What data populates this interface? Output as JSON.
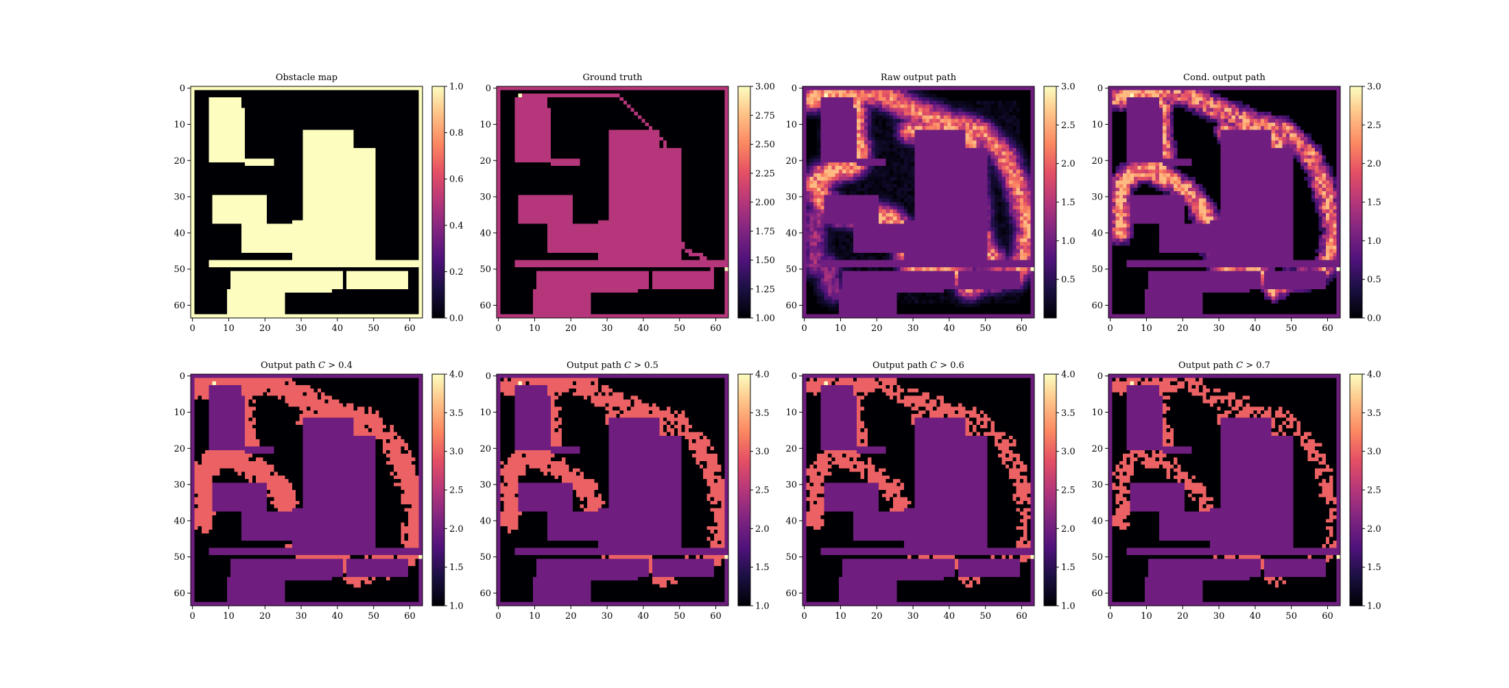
{
  "chart_data": [
    {
      "type": "heatmap",
      "title": "Obstacle map",
      "colormap": "magma",
      "grid_size": 64,
      "xlim": [
        0,
        63
      ],
      "ylim": [
        63,
        0
      ],
      "x_ticks": [
        "0",
        "10",
        "20",
        "30",
        "40",
        "50",
        "60"
      ],
      "y_ticks": [
        "0",
        "10",
        "20",
        "30",
        "40",
        "50",
        "60"
      ],
      "colorbar_range": [
        0.0,
        1.0
      ],
      "colorbar_ticks": [
        "0.0",
        "0.2",
        "0.4",
        "0.6",
        "0.8",
        "1.0"
      ],
      "colorbar_tick_values": [
        0.0,
        0.2,
        0.4,
        0.6,
        0.8,
        1.0
      ],
      "layers": {
        "background": 0.0,
        "border": 1.0,
        "obstacle": 1.0
      }
    },
    {
      "type": "heatmap",
      "title": "Ground truth",
      "colormap": "magma",
      "grid_size": 64,
      "xlim": [
        0,
        63
      ],
      "ylim": [
        63,
        0
      ],
      "x_ticks": [
        "0",
        "10",
        "20",
        "30",
        "40",
        "50",
        "60"
      ],
      "y_ticks": [
        "0",
        "10",
        "20",
        "30",
        "40",
        "50",
        "60"
      ],
      "colorbar_range": [
        1.0,
        3.0
      ],
      "colorbar_ticks": [
        "1.00",
        "1.25",
        "1.50",
        "1.75",
        "2.00",
        "2.25",
        "2.50",
        "2.75",
        "3.00"
      ],
      "colorbar_tick_values": [
        1.0,
        1.25,
        1.5,
        1.75,
        2.0,
        2.25,
        2.5,
        2.75,
        3.0
      ],
      "layers": {
        "background": 1.0,
        "border": 2.0,
        "obstacle": 2.0,
        "path": 2.0,
        "endpoints": 3.0
      }
    },
    {
      "type": "heatmap",
      "title": "Raw output path",
      "colormap": "magma",
      "grid_size": 64,
      "xlim": [
        0,
        63
      ],
      "ylim": [
        63,
        0
      ],
      "x_ticks": [
        "0",
        "10",
        "20",
        "30",
        "40",
        "50",
        "60"
      ],
      "y_ticks": [
        "0",
        "10",
        "20",
        "30",
        "40",
        "50",
        "60"
      ],
      "colorbar_range": [
        0.0,
        3.0
      ],
      "colorbar_ticks": [
        "0.5",
        "1.0",
        "1.5",
        "2.0",
        "2.5",
        "3.0"
      ],
      "colorbar_tick_values": [
        0.5,
        1.0,
        1.5,
        2.0,
        2.5,
        3.0
      ],
      "layers": {
        "background": 0.0,
        "border": 1.0,
        "obstacle": 1.0,
        "path_confidence_peak": 2.6,
        "endpoints": 3.0
      }
    },
    {
      "type": "heatmap",
      "title": "Cond. output path",
      "colormap": "magma",
      "grid_size": 64,
      "xlim": [
        0,
        63
      ],
      "ylim": [
        63,
        0
      ],
      "x_ticks": [
        "0",
        "10",
        "20",
        "30",
        "40",
        "50",
        "60"
      ],
      "y_ticks": [
        "0",
        "10",
        "20",
        "30",
        "40",
        "50",
        "60"
      ],
      "colorbar_range": [
        0.0,
        3.0
      ],
      "colorbar_ticks": [
        "0.0",
        "0.5",
        "1.0",
        "1.5",
        "2.0",
        "2.5",
        "3.0"
      ],
      "colorbar_tick_values": [
        0.0,
        0.5,
        1.0,
        1.5,
        2.0,
        2.5,
        3.0
      ],
      "layers": {
        "background": 0.0,
        "border": 1.0,
        "obstacle": 1.0,
        "path_confidence_peak": 2.6,
        "endpoints": 3.0
      }
    },
    {
      "type": "heatmap",
      "title_prefix": "Output path ",
      "title_var": "C",
      "title_suffix": " > 0.4",
      "threshold": 0.4,
      "colormap": "magma",
      "grid_size": 64,
      "xlim": [
        0,
        63
      ],
      "ylim": [
        63,
        0
      ],
      "x_ticks": [
        "0",
        "10",
        "20",
        "30",
        "40",
        "50",
        "60"
      ],
      "y_ticks": [
        "0",
        "10",
        "20",
        "30",
        "40",
        "50",
        "60"
      ],
      "colorbar_range": [
        1.0,
        4.0
      ],
      "colorbar_ticks": [
        "1.0",
        "1.5",
        "2.0",
        "2.5",
        "3.0",
        "3.5",
        "4.0"
      ],
      "colorbar_tick_values": [
        1.0,
        1.5,
        2.0,
        2.5,
        3.0,
        3.5,
        4.0
      ],
      "layers": {
        "background": 1.0,
        "border": 2.0,
        "obstacle": 2.0,
        "path": 3.0,
        "endpoints": 4.0
      }
    },
    {
      "type": "heatmap",
      "title_prefix": "Output path ",
      "title_var": "C",
      "title_suffix": " > 0.5",
      "threshold": 0.5,
      "colormap": "magma",
      "grid_size": 64,
      "xlim": [
        0,
        63
      ],
      "ylim": [
        63,
        0
      ],
      "x_ticks": [
        "0",
        "10",
        "20",
        "30",
        "40",
        "50",
        "60"
      ],
      "y_ticks": [
        "0",
        "10",
        "20",
        "30",
        "40",
        "50",
        "60"
      ],
      "colorbar_range": [
        1.0,
        4.0
      ],
      "colorbar_ticks": [
        "1.0",
        "1.5",
        "2.0",
        "2.5",
        "3.0",
        "3.5",
        "4.0"
      ],
      "colorbar_tick_values": [
        1.0,
        1.5,
        2.0,
        2.5,
        3.0,
        3.5,
        4.0
      ],
      "layers": {
        "background": 1.0,
        "border": 2.0,
        "obstacle": 2.0,
        "path": 3.0,
        "endpoints": 4.0
      }
    },
    {
      "type": "heatmap",
      "title_prefix": "Output path ",
      "title_var": "C",
      "title_suffix": " > 0.6",
      "threshold": 0.6,
      "colormap": "magma",
      "grid_size": 64,
      "xlim": [
        0,
        63
      ],
      "ylim": [
        63,
        0
      ],
      "x_ticks": [
        "0",
        "10",
        "20",
        "30",
        "40",
        "50",
        "60"
      ],
      "y_ticks": [
        "0",
        "10",
        "20",
        "30",
        "40",
        "50",
        "60"
      ],
      "colorbar_range": [
        1.0,
        4.0
      ],
      "colorbar_ticks": [
        "1.0",
        "1.5",
        "2.0",
        "2.5",
        "3.0",
        "3.5",
        "4.0"
      ],
      "colorbar_tick_values": [
        1.0,
        1.5,
        2.0,
        2.5,
        3.0,
        3.5,
        4.0
      ],
      "layers": {
        "background": 1.0,
        "border": 2.0,
        "obstacle": 2.0,
        "path": 3.0,
        "endpoints": 4.0
      }
    },
    {
      "type": "heatmap",
      "title_prefix": "Output path ",
      "title_var": "C",
      "title_suffix": " > 0.7",
      "threshold": 0.7,
      "colormap": "magma",
      "grid_size": 64,
      "xlim": [
        0,
        63
      ],
      "ylim": [
        63,
        0
      ],
      "x_ticks": [
        "0",
        "10",
        "20",
        "30",
        "40",
        "50",
        "60"
      ],
      "y_ticks": [
        "0",
        "10",
        "20",
        "30",
        "40",
        "50",
        "60"
      ],
      "colorbar_range": [
        1.0,
        4.0
      ],
      "colorbar_ticks": [
        "1.0",
        "1.5",
        "2.0",
        "2.5",
        "3.0",
        "3.5",
        "4.0"
      ],
      "colorbar_tick_values": [
        1.0,
        1.5,
        2.0,
        2.5,
        3.0,
        3.5,
        4.0
      ],
      "layers": {
        "background": 1.0,
        "border": 2.0,
        "obstacle": 2.0,
        "path": 3.0,
        "endpoints": 4.0
      }
    }
  ],
  "obstacles": [
    [
      5,
      3,
      14,
      6
    ],
    [
      5,
      6,
      15,
      21
    ],
    [
      15,
      20,
      23,
      22
    ],
    [
      31,
      12,
      45,
      17
    ],
    [
      31,
      17,
      51,
      49
    ],
    [
      6,
      30,
      21,
      38
    ],
    [
      14,
      38,
      28,
      46
    ],
    [
      28,
      37,
      31,
      49
    ],
    [
      5,
      48,
      63,
      50
    ],
    [
      11,
      51,
      42,
      56
    ],
    [
      10,
      56,
      26,
      63
    ],
    [
      26,
      56,
      39,
      57
    ],
    [
      43,
      51,
      60,
      56
    ]
  ],
  "gt_path": {
    "start": [
      6,
      2
    ],
    "end": [
      63,
      50
    ],
    "points": [
      [
        6,
        2
      ],
      [
        33,
        2
      ],
      [
        40,
        9
      ],
      [
        46,
        15
      ],
      [
        47,
        21
      ],
      [
        48,
        40
      ],
      [
        52,
        45
      ],
      [
        57,
        47
      ],
      [
        59,
        50
      ]
    ]
  },
  "raw_path": {
    "main": [
      [
        2,
        3
      ],
      [
        6,
        1
      ],
      [
        13,
        2
      ],
      [
        14,
        6
      ],
      [
        14,
        12
      ],
      [
        15,
        20
      ],
      [
        12,
        22
      ],
      [
        7,
        23
      ],
      [
        3,
        26
      ]
    ],
    "outer": [
      [
        6,
        1
      ],
      [
        22,
        2
      ],
      [
        30,
        6
      ],
      [
        38,
        9
      ],
      [
        49,
        12
      ],
      [
        55,
        18
      ],
      [
        59,
        27
      ],
      [
        62,
        39
      ],
      [
        60,
        49
      ],
      [
        58,
        52
      ],
      [
        49,
        53
      ],
      [
        45,
        55
      ]
    ],
    "inner": [
      [
        3,
        26
      ],
      [
        5,
        31
      ],
      [
        10,
        35
      ],
      [
        20,
        35
      ],
      [
        25,
        37
      ],
      [
        28,
        40
      ],
      [
        28,
        45
      ],
      [
        30,
        49
      ],
      [
        33,
        51
      ],
      [
        42,
        51
      ],
      [
        44,
        53
      ],
      [
        47,
        53
      ]
    ],
    "mid": [
      [
        29,
        12
      ],
      [
        40,
        12
      ],
      [
        46,
        15
      ],
      [
        47,
        22
      ],
      [
        48,
        40
      ],
      [
        50,
        45
      ],
      [
        53,
        49
      ]
    ],
    "lower_left": [
      [
        3,
        35
      ],
      [
        3,
        49
      ],
      [
        6,
        49
      ],
      [
        8,
        56
      ]
    ]
  },
  "cond_path": {
    "main": [
      [
        2,
        3
      ],
      [
        6,
        1
      ],
      [
        13,
        2
      ],
      [
        14,
        6
      ],
      [
        14,
        12
      ],
      [
        15,
        20
      ],
      [
        12,
        22
      ],
      [
        7,
        23
      ],
      [
        3,
        26
      ],
      [
        3,
        40
      ]
    ],
    "outer": [
      [
        6,
        1
      ],
      [
        22,
        2
      ],
      [
        30,
        6
      ],
      [
        38,
        9
      ],
      [
        49,
        12
      ],
      [
        55,
        18
      ],
      [
        59,
        27
      ],
      [
        62,
        39
      ],
      [
        60,
        49
      ],
      [
        57,
        52
      ],
      [
        49,
        53
      ],
      [
        45,
        56
      ]
    ],
    "inner": [
      [
        9,
        22
      ],
      [
        18,
        26
      ],
      [
        24,
        31
      ],
      [
        27,
        37
      ],
      [
        28,
        42
      ],
      [
        29,
        47
      ],
      [
        33,
        51
      ],
      [
        42,
        51
      ],
      [
        44,
        53
      ]
    ],
    "mid": [
      [
        32,
        12
      ],
      [
        40,
        12
      ],
      [
        46,
        15
      ],
      [
        47,
        20
      ]
    ]
  }
}
